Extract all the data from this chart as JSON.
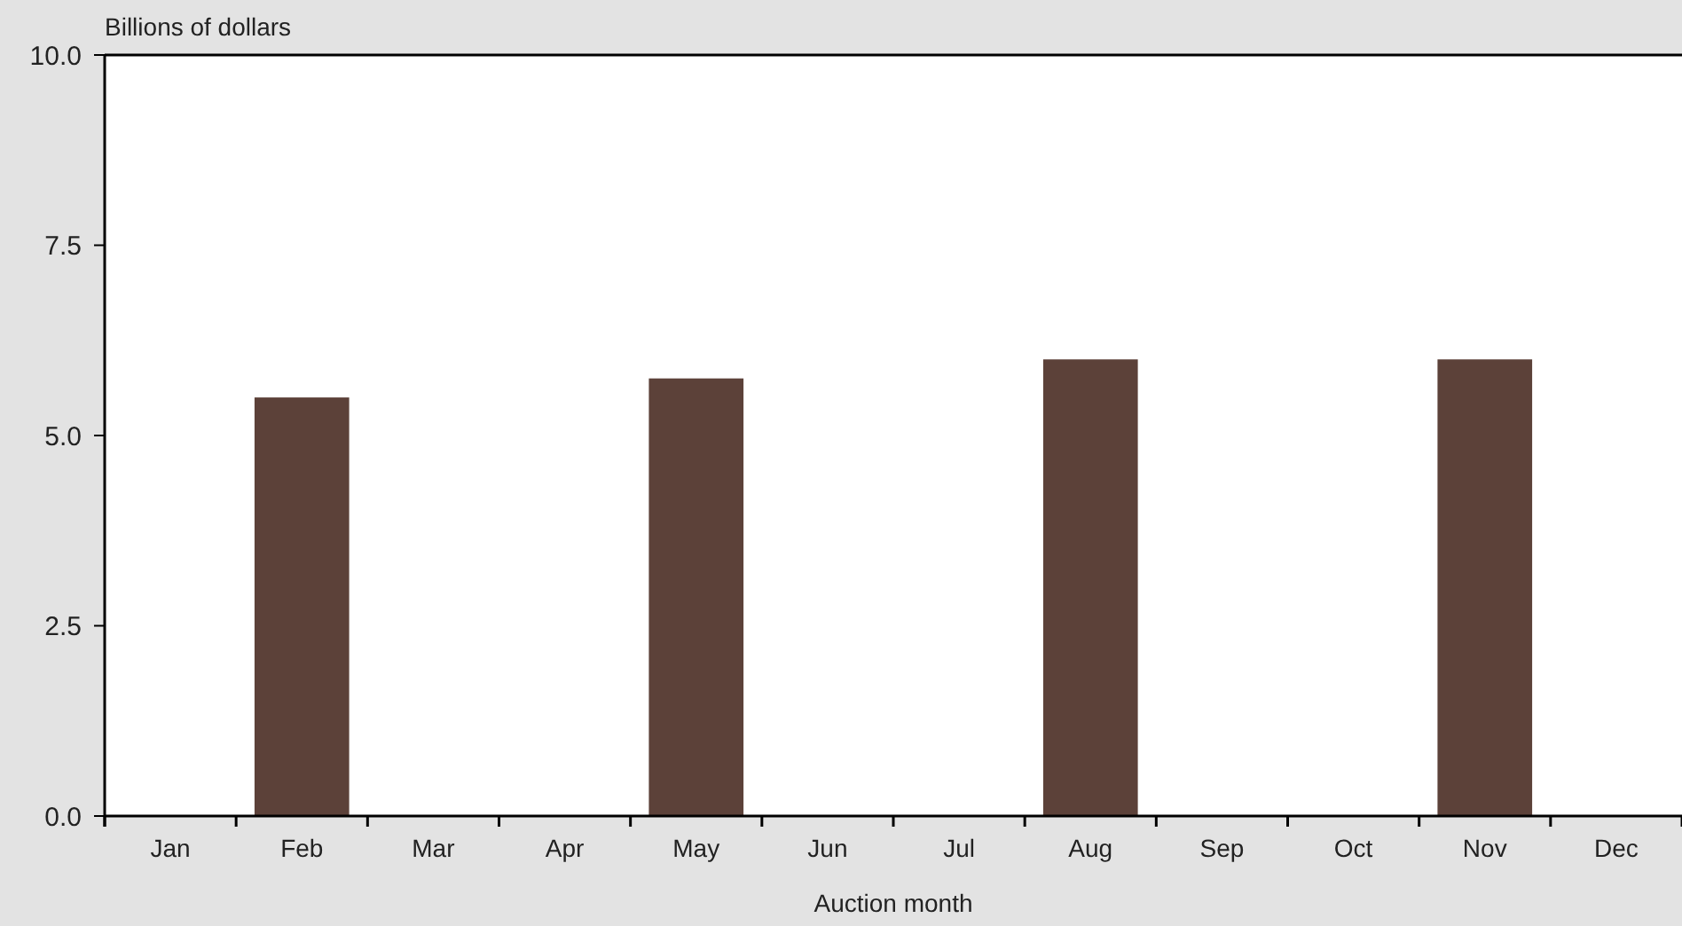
{
  "chart_data": {
    "type": "bar",
    "ylabel": "Billions of dollars",
    "xlabel": "Auction month",
    "categories": [
      "Jan",
      "Feb",
      "Mar",
      "Apr",
      "May",
      "Jun",
      "Jul",
      "Aug",
      "Sep",
      "Oct",
      "Nov",
      "Dec"
    ],
    "values": [
      0,
      5.5,
      0,
      0,
      5.75,
      0,
      0,
      6.0,
      0,
      0,
      6.0,
      0
    ],
    "color": "#5c4139",
    "ylim": [
      0,
      10
    ],
    "yticks": [
      {
        "value": 0,
        "label": "0.0"
      },
      {
        "value": 2.5,
        "label": "2.5"
      },
      {
        "value": 5,
        "label": "5.0"
      },
      {
        "value": 7.5,
        "label": "7.5"
      },
      {
        "value": 10,
        "label": "10.0"
      }
    ],
    "grid": false
  }
}
